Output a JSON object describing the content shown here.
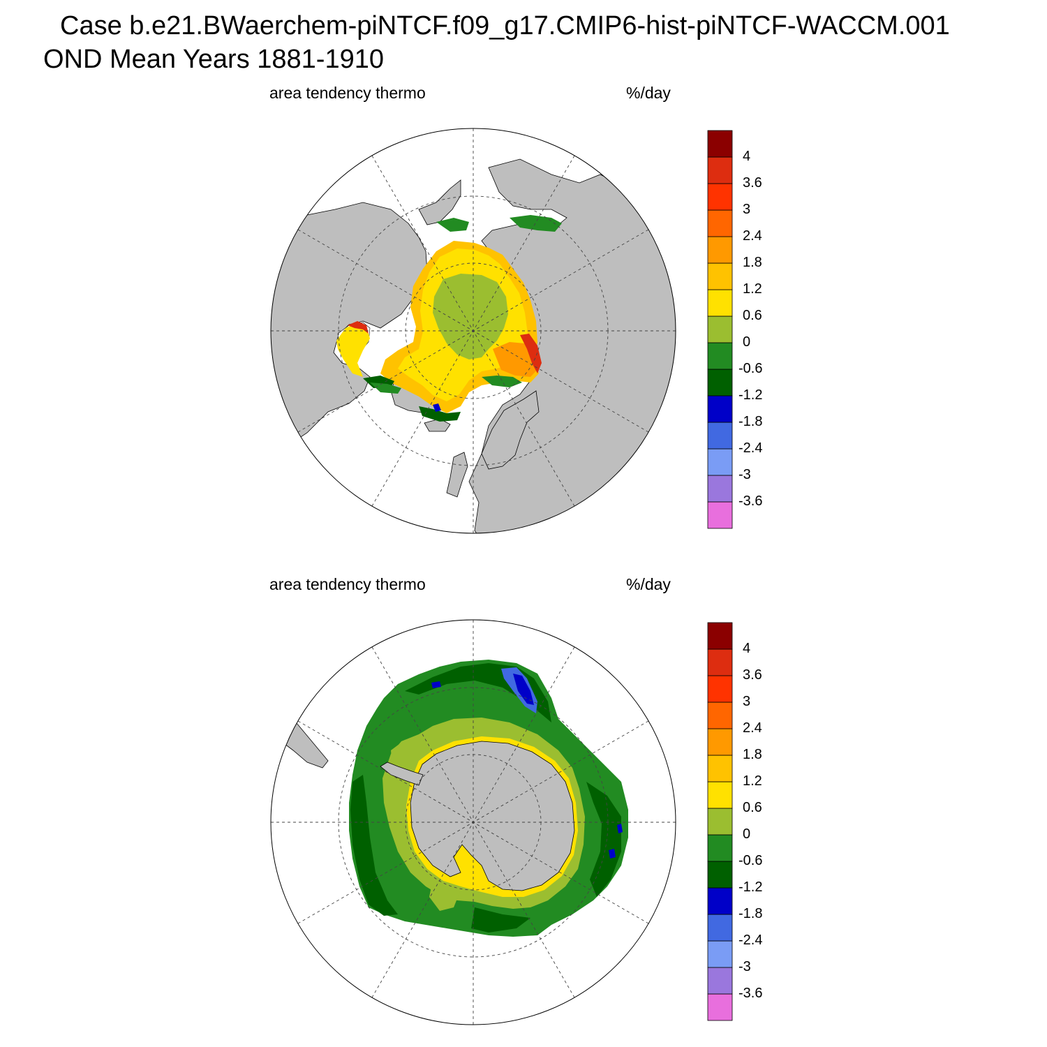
{
  "title": {
    "line1": "Case b.e21.BWaerchem-piNTCF.f09_g17.CMIP6-hist-piNTCF-WACCM.001",
    "line2": "OND Mean   Years 1881-1910"
  },
  "colors": {
    "land": "#bebebe",
    "ice_free": "#ffffff",
    "scale": [
      "#e86fdd",
      "#9a77dd",
      "#7a9cf5",
      "#4169e1",
      "#0000c8",
      "#006000",
      "#228b22",
      "#9bbe30",
      "#ffe100",
      "#ffc200",
      "#ff9900",
      "#ff6600",
      "#ff3300",
      "#dd2d10",
      "#8b0000"
    ]
  },
  "colorbar": {
    "levels": [
      "-3.6",
      "-3",
      "-2.4",
      "-1.8",
      "-1.2",
      "-0.6",
      "0",
      "0.6",
      "1.2",
      "1.8",
      "2.4",
      "3",
      "3.6",
      "4"
    ]
  },
  "panels": [
    {
      "id": "north",
      "left_label": "area tendency thermo",
      "right_label": "%/day",
      "hemisphere": "Arctic (north polar stereographic)"
    },
    {
      "id": "south",
      "left_label": "area tendency thermo",
      "right_label": "%/day",
      "hemisphere": "Antarctic (south polar stereographic)"
    }
  ]
}
